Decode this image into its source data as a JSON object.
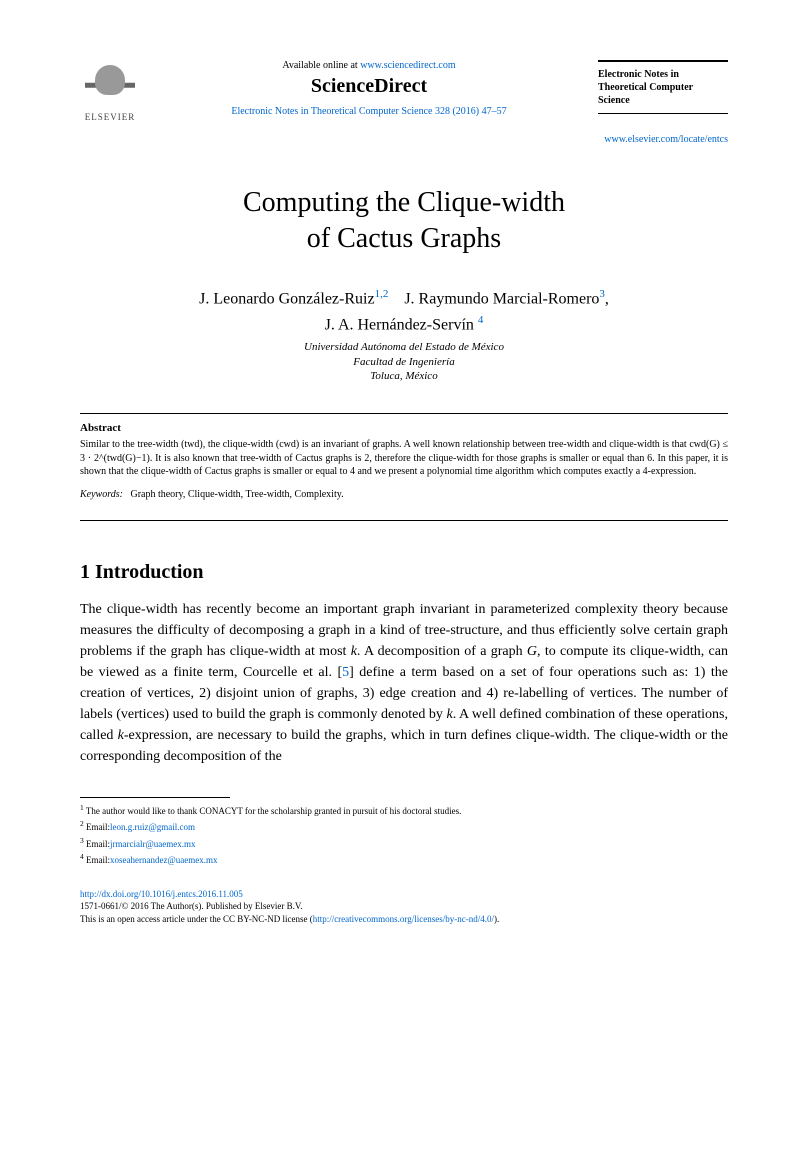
{
  "header": {
    "elsevier_label": "ELSEVIER",
    "available_text": "Available online at ",
    "available_url": "www.sciencedirect.com",
    "sciencedirect": "ScienceDirect",
    "journal_ref": "Electronic Notes in Theoretical Computer Science 328 (2016) 47–57",
    "journal_box_line1": "Electronic Notes in",
    "journal_box_line2": "Theoretical Computer",
    "journal_box_line3": "Science",
    "locate_url": "www.elsevier.com/locate/entcs"
  },
  "title_line1": "Computing the Clique-width",
  "title_line2": "of Cactus Graphs",
  "authors": {
    "a1_name": "J. Leonardo González-Ruiz",
    "a1_sup": "1,2",
    "a2_name": "J. Raymundo Marcial-Romero",
    "a2_sup": "3",
    "a3_name": "J. A. Hernández-Servín",
    "a3_sup": "4"
  },
  "affiliation": {
    "line1": "Universidad Autónoma del Estado de México",
    "line2": "Facultad de Ingeniería",
    "line3": "Toluca, México"
  },
  "abstract": {
    "heading": "Abstract",
    "text": "Similar to the tree-width (twd), the clique-width (cwd) is an invariant of graphs. A well known relationship between tree-width and clique-width is that cwd(G) ≤ 3 · 2^(twd(G)−1). It is also known that tree-width of Cactus graphs is 2, therefore the clique-width for those graphs is smaller or equal than 6. In this paper, it is shown that the clique-width of Cactus graphs is smaller or equal to 4 and we present a polynomial time algorithm which computes exactly a 4-expression.",
    "keywords_label": "Keywords:",
    "keywords_text": "Graph theory, Clique-width, Tree-width, Complexity."
  },
  "section1": {
    "heading": "1   Introduction",
    "body": "The clique-width has recently become an important graph invariant in parameterized complexity theory because measures the difficulty of decomposing a graph in a kind of tree-structure, and thus efficiently solve certain graph problems if the graph has clique-width at most k. A decomposition of a graph G, to compute its clique-width, can be viewed as a finite term, Courcelle et al. [5] define a term based on a set of four operations such as: 1) the creation of vertices, 2) disjoint union of graphs, 3) edge creation and 4) re-labelling of vertices. The number of labels (vertices) used to build the graph is commonly denoted by k. A well defined combination of these operations, called k-expression, are necessary to build the graphs, which in turn defines clique-width. The clique-width or the corresponding decomposition of the",
    "ref5": "5"
  },
  "footnotes": {
    "f1": "The author would like to thank CONACYT for the scholarship granted in pursuit of his doctoral studies.",
    "f2_label": "Email:",
    "f2_email": "leon.g.ruiz@gmail.com",
    "f3_label": "Email:",
    "f3_email": "jrmarcialr@uaemex.mx",
    "f4_label": "Email:",
    "f4_email": "xoseahernandez@uaemex.mx"
  },
  "footer": {
    "doi": "http://dx.doi.org/10.1016/j.entcs.2016.11.005",
    "copyright": "1571-0661/© 2016 The Author(s). Published by Elsevier B.V.",
    "license_text": "This is an open access article under the CC BY-NC-ND license (",
    "license_url": "http://creativecommons.org/licenses/by-nc-nd/4.0/",
    "license_close": ")."
  },
  "colors": {
    "link": "#0066cc",
    "text": "#000000",
    "background": "#ffffff"
  }
}
